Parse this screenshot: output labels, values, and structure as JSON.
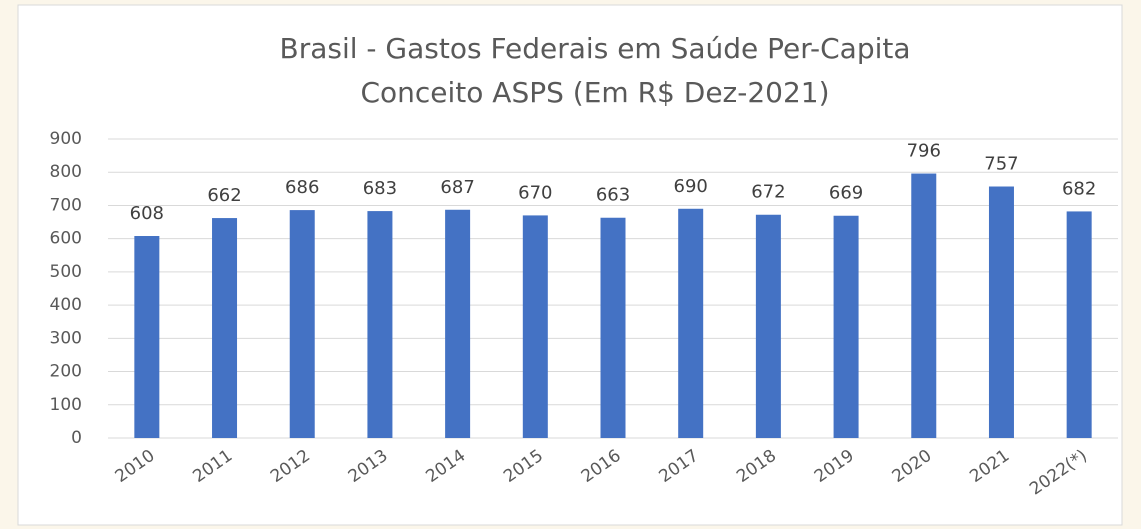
{
  "chart_data": {
    "type": "bar",
    "title": [
      "Brasil - Gastos Federais em Saúde Per-Capita",
      "Conceito ASPS (Em R$ Dez-2021)"
    ],
    "categories": [
      "2010",
      "2011",
      "2012",
      "2013",
      "2014",
      "2015",
      "2016",
      "2017",
      "2018",
      "2019",
      "2020",
      "2021",
      "2022(*)"
    ],
    "values": [
      608,
      662,
      686,
      683,
      687,
      670,
      663,
      690,
      672,
      669,
      796,
      757,
      682
    ],
    "color": "#4472c4",
    "ylim": [
      0,
      900
    ],
    "yticks": [
      0,
      100,
      200,
      300,
      400,
      500,
      600,
      700,
      800,
      900
    ],
    "grid": true
  }
}
